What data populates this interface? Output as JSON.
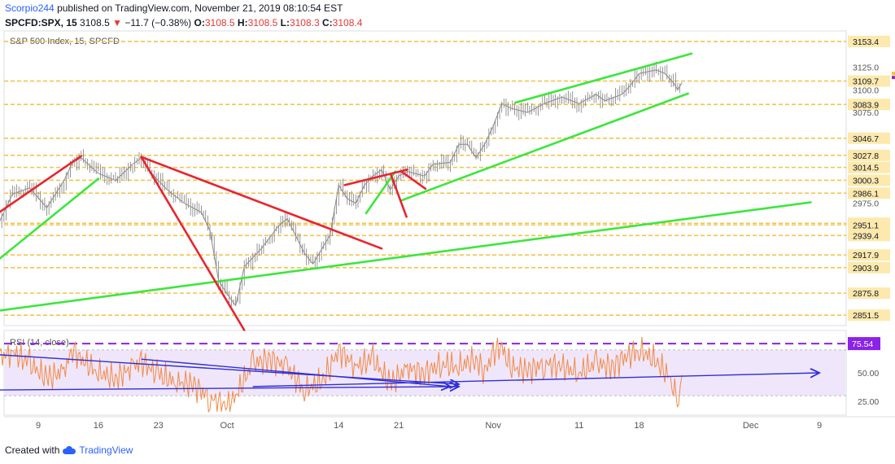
{
  "header": {
    "author": "Scorpio244",
    "published_text": "published on TradingView.com, November 21, 2019 08:10:54 EST",
    "symbol": "SPCFD:SPX, 15",
    "last": "3108.5",
    "arrow": "▼",
    "change": "−11.7 (−0.38%)",
    "o_label": "O:",
    "o_val": "3108.5",
    "h_label": "H:",
    "h_val": "3108.5",
    "l_label": "L:",
    "l_val": "3108.3",
    "c_label": "C:",
    "c_val": "3108.4"
  },
  "footer": {
    "created_with": "Created with",
    "brand": "TradingView"
  },
  "colors": {
    "candle": "#7d7d7d",
    "level": "#f5c34a",
    "green": "#3de63d",
    "red": "#e8252e",
    "rsi_line": "#f28b45",
    "rsi_band": "#f0e6fb",
    "rsi_dash": "#8b22e8",
    "rsi_trend": "#2f2fd8",
    "flag_yellow": "#fbc02d",
    "flag_purple": "#9c27b0"
  },
  "chart_data": [
    {
      "type": "line",
      "title": "S&P 500 Index, 15, SPCFD",
      "ylim": [
        2840,
        3165
      ],
      "x_ticks": [
        {
          "label": "9",
          "day": 9
        },
        {
          "label": "16",
          "day": 16
        },
        {
          "label": "23",
          "day": 23
        },
        {
          "label": "Oct",
          "day": 31
        },
        {
          "label": "14",
          "day": 44
        },
        {
          "label": "21",
          "day": 51
        },
        {
          "label": "Nov",
          "day": 62
        },
        {
          "label": "11",
          "day": 72
        },
        {
          "label": "18",
          "day": 79
        },
        {
          "label": "Dec",
          "day": 92
        },
        {
          "label": "9",
          "day": 100
        }
      ],
      "y_ticks": [
        3125.0,
        3100.0,
        3075.0,
        2975.0
      ],
      "price_levels": [
        {
          "label": "3153.4",
          "value": 3153.4
        },
        {
          "label": "3109.7",
          "value": 3109.7
        },
        {
          "label": "3083.9",
          "value": 3083.9
        },
        {
          "label": "3046.7",
          "value": 3046.7
        },
        {
          "label": "3027.8",
          "value": 3027.8
        },
        {
          "label": "3014.5",
          "value": 3014.5
        },
        {
          "label": "3000.3",
          "value": 3000.3
        },
        {
          "label": "2986.1",
          "value": 2986.1
        },
        {
          "label": "2952.9",
          "value": 2952.9
        },
        {
          "label": "2951.1",
          "value": 2951.1
        },
        {
          "label": "2939.4",
          "value": 2939.4
        },
        {
          "label": "2917.9",
          "value": 2917.9
        },
        {
          "label": "2903.9",
          "value": 2903.9
        },
        {
          "label": "2875.8",
          "value": 2875.8
        },
        {
          "label": "2851.5",
          "value": 2851.5
        }
      ],
      "price_path": [
        [
          4,
          2945
        ],
        [
          6,
          2985
        ],
        [
          8,
          2992
        ],
        [
          10,
          2970
        ],
        [
          12,
          3000
        ],
        [
          13,
          3020
        ],
        [
          14,
          3025
        ],
        [
          16,
          3008
        ],
        [
          18,
          3000
        ],
        [
          20,
          3018
        ],
        [
          21,
          3025
        ],
        [
          22,
          3010
        ],
        [
          24,
          2990
        ],
        [
          26,
          2975
        ],
        [
          28,
          2965
        ],
        [
          29,
          2945
        ],
        [
          30,
          2890
        ],
        [
          31,
          2875
        ],
        [
          32,
          2862
        ],
        [
          33,
          2905
        ],
        [
          35,
          2925
        ],
        [
          37,
          2950
        ],
        [
          38,
          2958
        ],
        [
          40,
          2920
        ],
        [
          41,
          2908
        ],
        [
          43,
          2940
        ],
        [
          44,
          2995
        ],
        [
          45,
          2980
        ],
        [
          46,
          2975
        ],
        [
          47,
          2995
        ],
        [
          48,
          3005
        ],
        [
          49,
          3012
        ],
        [
          50,
          2990
        ],
        [
          51,
          3005
        ],
        [
          52,
          3010
        ],
        [
          54,
          3005
        ],
        [
          55,
          3018
        ],
        [
          57,
          3020
        ],
        [
          58,
          3040
        ],
        [
          59,
          3040
        ],
        [
          60,
          3025
        ],
        [
          61,
          3040
        ],
        [
          62,
          3060
        ],
        [
          63,
          3085
        ],
        [
          64,
          3080
        ],
        [
          66,
          3075
        ],
        [
          68,
          3085
        ],
        [
          70,
          3092
        ],
        [
          72,
          3085
        ],
        [
          74,
          3095
        ],
        [
          75,
          3088
        ],
        [
          77,
          3095
        ],
        [
          78,
          3105
        ],
        [
          79,
          3118
        ],
        [
          80,
          3120
        ],
        [
          81,
          3122
        ],
        [
          82,
          3118
        ],
        [
          83,
          3108
        ],
        [
          83.5,
          3100
        ],
        [
          84,
          3108
        ]
      ],
      "trendlines": [
        {
          "color": "green",
          "from": [
            4,
            2910
          ],
          "to": [
            16,
            3002
          ]
        },
        {
          "color": "green",
          "from": [
            4,
            2856
          ],
          "to": [
            99,
            2976
          ]
        },
        {
          "color": "green",
          "from": [
            47.2,
            2964
          ],
          "to": [
            50.6,
            3010
          ]
        },
        {
          "color": "green",
          "from": [
            51.3,
            2978
          ],
          "to": [
            84.7,
            3096
          ]
        },
        {
          "color": "green",
          "from": [
            64.6,
            3086
          ],
          "to": [
            85.1,
            3140
          ]
        },
        {
          "color": "red",
          "from": [
            4,
            2962
          ],
          "to": [
            14,
            3027
          ]
        },
        {
          "color": "red",
          "from": [
            21,
            3026
          ],
          "to": [
            33,
            2835
          ]
        },
        {
          "color": "red",
          "from": [
            21,
            3026
          ],
          "to": [
            49,
            2925
          ]
        },
        {
          "color": "red",
          "from": [
            44.7,
            2995
          ],
          "to": [
            52,
            3012
          ]
        },
        {
          "color": "red",
          "from": [
            50.1,
            3006
          ],
          "to": [
            51.9,
            2960
          ]
        },
        {
          "color": "red",
          "from": [
            51.3,
            3010
          ],
          "to": [
            54.1,
            2991
          ]
        }
      ]
    },
    {
      "type": "line",
      "title": "RSI (14, close)",
      "ylim": [
        13,
        87
      ],
      "y_ticks": [
        50.0,
        25.0
      ],
      "upper_label": "75.54",
      "upper_value": 75.54,
      "band": [
        30,
        70
      ],
      "rsi_path": [
        [
          4,
          62
        ],
        [
          6,
          68
        ],
        [
          8,
          58
        ],
        [
          10,
          45
        ],
        [
          12,
          52
        ],
        [
          13,
          70
        ],
        [
          14,
          62
        ],
        [
          16,
          50
        ],
        [
          18,
          45
        ],
        [
          20,
          55
        ],
        [
          21,
          60
        ],
        [
          23,
          48
        ],
        [
          25,
          42
        ],
        [
          27,
          40
        ],
        [
          29,
          28
        ],
        [
          31,
          20
        ],
        [
          32,
          30
        ],
        [
          34,
          58
        ],
        [
          36,
          62
        ],
        [
          38,
          55
        ],
        [
          40,
          35
        ],
        [
          42,
          42
        ],
        [
          43,
          55
        ],
        [
          44,
          70
        ],
        [
          46,
          55
        ],
        [
          48,
          62
        ],
        [
          50,
          40
        ],
        [
          52,
          54
        ],
        [
          54,
          50
        ],
        [
          56,
          58
        ],
        [
          58,
          55
        ],
        [
          60,
          62
        ],
        [
          61,
          50
        ],
        [
          62,
          68
        ],
        [
          63,
          72
        ],
        [
          64,
          55
        ],
        [
          66,
          52
        ],
        [
          68,
          58
        ],
        [
          70,
          55
        ],
        [
          72,
          50
        ],
        [
          74,
          58
        ],
        [
          76,
          55
        ],
        [
          77,
          62
        ],
        [
          79,
          70
        ],
        [
          81,
          60
        ],
        [
          83,
          42
        ],
        [
          83.6,
          18
        ],
        [
          84,
          48
        ]
      ],
      "trendlines": [
        {
          "from": [
            4,
            66
          ],
          "to": [
            58,
            40
          ]
        },
        {
          "from": [
            4,
            35
          ],
          "to": [
            58,
            38
          ]
        },
        {
          "from": [
            21,
            62
          ],
          "to": [
            57,
            38
          ]
        },
        {
          "from": [
            34,
            38
          ],
          "to": [
            100,
            50
          ]
        }
      ]
    }
  ]
}
